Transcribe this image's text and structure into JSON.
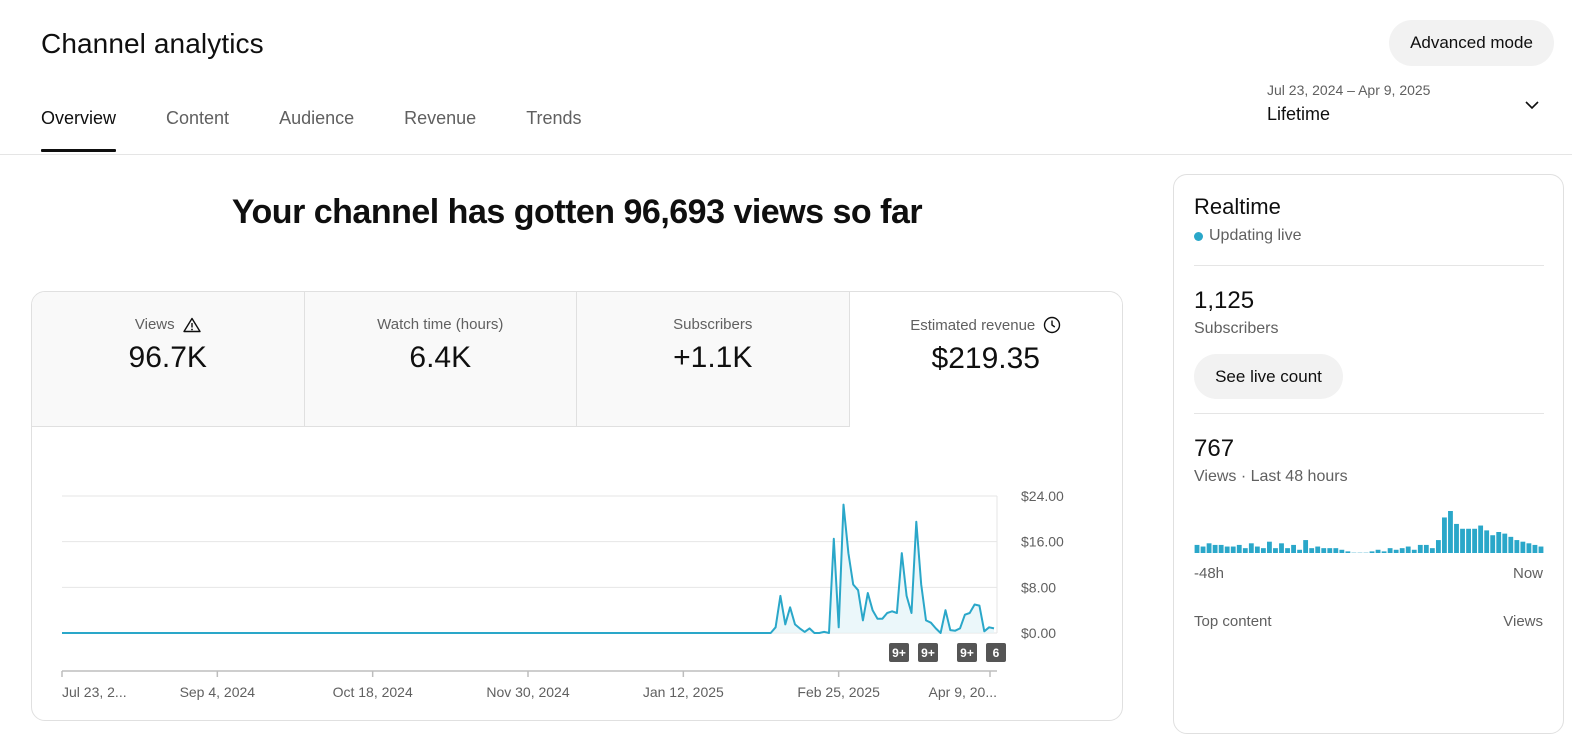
{
  "header": {
    "title": "Channel analytics",
    "advanced_button": "Advanced mode",
    "tabs": [
      {
        "label": "Overview",
        "active": true
      },
      {
        "label": "Content",
        "active": false
      },
      {
        "label": "Audience",
        "active": false
      },
      {
        "label": "Revenue",
        "active": false
      },
      {
        "label": "Trends",
        "active": false
      }
    ],
    "date_range": {
      "dates": "Jul 23, 2024 – Apr 9, 2025",
      "period": "Lifetime"
    }
  },
  "main": {
    "headline": "Your channel has gotten 96,693 views so far",
    "metrics": [
      {
        "label": "Views",
        "value": "96.7K",
        "icon": "warning-icon"
      },
      {
        "label": "Watch time (hours)",
        "value": "6.4K"
      },
      {
        "label": "Subscribers",
        "value": "+1.1K"
      },
      {
        "label": "Estimated revenue",
        "value": "$219.35",
        "icon": "clock-icon",
        "selected": true
      }
    ]
  },
  "chart_data": {
    "type": "line",
    "series": [
      {
        "values": [
          [
            0,
            0
          ],
          [
            146,
            0
          ],
          [
            147,
            1.0
          ],
          [
            148,
            6.5
          ],
          [
            149,
            1.5
          ],
          [
            150,
            4.5
          ],
          [
            151,
            1.5
          ],
          [
            152,
            0.8
          ],
          [
            153,
            0.2
          ],
          [
            154,
            0.8
          ],
          [
            155,
            0
          ],
          [
            156,
            0
          ],
          [
            157,
            0.2
          ],
          [
            158,
            0
          ],
          [
            159,
            16.5
          ],
          [
            160,
            1.0
          ],
          [
            161,
            22.5
          ],
          [
            162,
            14
          ],
          [
            163,
            8.5
          ],
          [
            164,
            7.5
          ],
          [
            165,
            2.2
          ],
          [
            166,
            7
          ],
          [
            167,
            4
          ],
          [
            168,
            2.5
          ],
          [
            169,
            2.5
          ],
          [
            170,
            3.5
          ],
          [
            171,
            3.8
          ],
          [
            172,
            3.5
          ],
          [
            173,
            14
          ],
          [
            174,
            6.5
          ],
          [
            175,
            3.5
          ],
          [
            176,
            19.5
          ],
          [
            177,
            8.5
          ],
          [
            178,
            2.2
          ],
          [
            179,
            1.8
          ],
          [
            180,
            0.8
          ],
          [
            181,
            0
          ],
          [
            182,
            4.0
          ],
          [
            183,
            0.5
          ],
          [
            184,
            0.4
          ],
          [
            185,
            0.8
          ],
          [
            186,
            3.2
          ],
          [
            187,
            3.5
          ],
          [
            188,
            5.0
          ],
          [
            189,
            4.8
          ],
          [
            190,
            0.3
          ],
          [
            191,
            1.0
          ],
          [
            192,
            0.8
          ]
        ]
      }
    ],
    "x_ticks": [
      "Jul 23, 2...",
      "Sep 4, 2024",
      "Oct 18, 2024",
      "Nov 30, 2024",
      "Jan 12, 2025",
      "Feb 25, 2025",
      "Apr 9, 20..."
    ],
    "x_range": [
      0,
      192
    ],
    "y_ticks": [
      "$24.00",
      "$16.00",
      "$8.00",
      "$0.00"
    ],
    "ylim": [
      0,
      24
    ],
    "badges": [
      "9+",
      "9+",
      "9+",
      "6"
    ],
    "colors": {
      "line": "#2aa7c9",
      "fill": "#e3f4f8"
    }
  },
  "realtime": {
    "title": "Realtime",
    "status": "Updating live",
    "subscribers_value": "1,125",
    "subscribers_label": "Subscribers",
    "live_count_button": "See live count",
    "views_value": "767",
    "views_label": "Views · Last 48 hours",
    "bars": [
      5,
      4,
      6,
      5,
      5,
      4,
      4,
      5,
      3,
      6,
      4,
      3,
      7,
      3,
      6,
      3,
      5,
      2,
      8,
      3,
      4,
      3,
      3,
      3,
      2,
      1,
      0,
      0,
      0,
      1,
      2,
      1,
      3,
      2,
      3,
      4,
      2,
      5,
      5,
      3,
      8,
      22,
      26,
      18,
      15,
      15,
      15,
      17,
      14,
      11,
      13,
      12,
      10,
      8,
      7,
      6,
      5,
      4
    ],
    "start_label": "-48h",
    "end_label": "Now",
    "top_content_label": "Top content",
    "top_content_views_label": "Views"
  }
}
